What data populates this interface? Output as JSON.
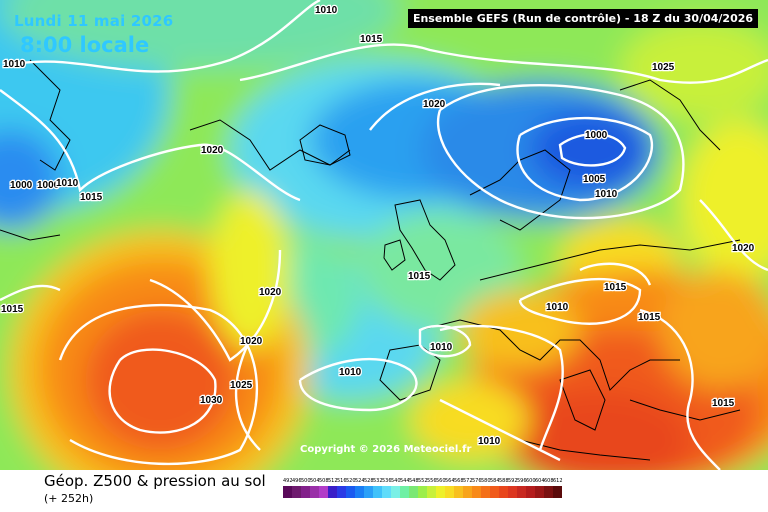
{
  "header": {
    "date": "Lundi 11 mai 2026",
    "time": "8:00 locale",
    "run": "Ensemble GEFS  (Run de contrôle)  -  18 Z du 30/04/2026"
  },
  "map": {
    "copyright": "Copyright © 2026 Meteociel.fr",
    "isobar_labels": [
      "1010",
      "1015",
      "1010",
      "1020",
      "1000",
      "1025",
      "1020",
      "1000",
      "1000",
      "1010",
      "1015",
      "1005",
      "1010",
      "1020",
      "1015",
      "1020",
      "1010",
      "1015",
      "1015",
      "1010",
      "1015",
      "1020",
      "1010",
      "1025",
      "1030",
      "1010",
      "1015",
      "1010"
    ]
  },
  "footer": {
    "variable": "Géop. Z500 & pression au sol",
    "lead": "(+ 252h)"
  },
  "scale": {
    "values": [
      "492",
      "496",
      "500",
      "504",
      "508",
      "512",
      "516",
      "520",
      "524",
      "528",
      "532",
      "536",
      "540",
      "544",
      "548",
      "552",
      "556",
      "560",
      "564",
      "568",
      "572",
      "576",
      "580",
      "584",
      "588",
      "592",
      "596",
      "600",
      "604",
      "608",
      "612"
    ],
    "colors": [
      "#5a0a5a",
      "#6e1a6e",
      "#82208a",
      "#9a30a8",
      "#b23cc8",
      "#3a1ec8",
      "#2a3ae6",
      "#1a5af0",
      "#1a7ef5",
      "#2aa0f8",
      "#40c2fa",
      "#60dcfa",
      "#7af0e6",
      "#6ef0a4",
      "#7ae874",
      "#9cee4a",
      "#c8f03a",
      "#eef02a",
      "#f8dc24",
      "#f8c01e",
      "#f8a41a",
      "#f88a18",
      "#f47018",
      "#f05a1a",
      "#e8461c",
      "#dc3620",
      "#c82820",
      "#b41c1c",
      "#9a1616",
      "#7a1010",
      "#5a0a0a"
    ]
  }
}
